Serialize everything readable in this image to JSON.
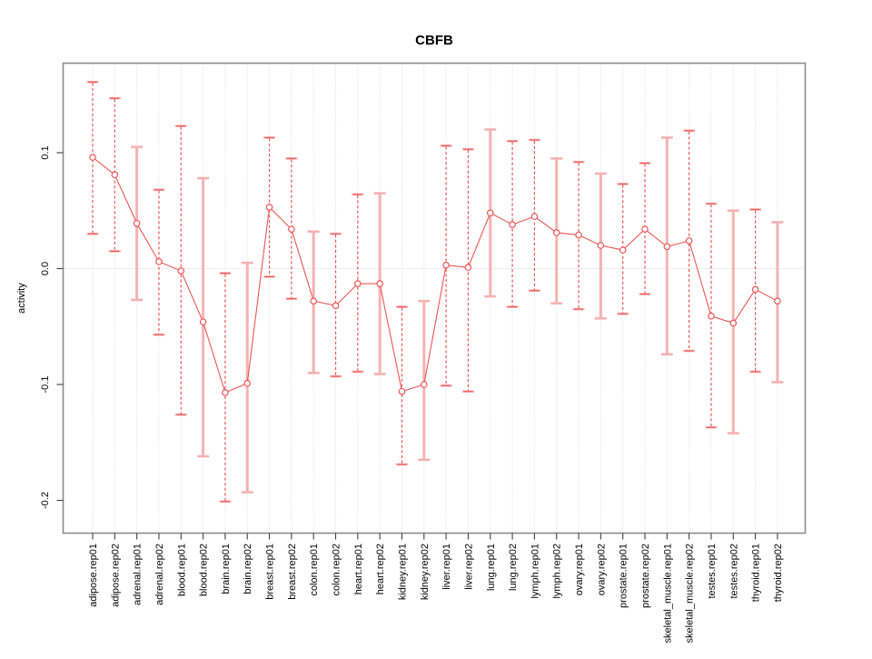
{
  "chart_data": {
    "type": "line",
    "title": "CBFB",
    "xlabel": "",
    "ylabel": "activity",
    "ylim": [
      -0.228,
      0.177
    ],
    "yticks": [
      0.1,
      0.0,
      -0.1,
      -0.2
    ],
    "ytick_labels": [
      "0.1",
      "0.0",
      "-0.1",
      "-0.2"
    ],
    "grid": "vertical dotted line per category, dotted horizontal line at y=0",
    "legend_position": "none",
    "marker": "open-circle",
    "colors": {
      "series": "#ee5555",
      "band": "#f7b2b2",
      "grid": "#d9d9d9",
      "box": "#8c8c8c"
    },
    "error_bars": true,
    "points": [
      {
        "label": "adipose.rep01",
        "value": 0.096,
        "lo": 0.03,
        "hi": 0.161,
        "bar_style": "dashed"
      },
      {
        "label": "adipose.rep02",
        "value": 0.081,
        "lo": 0.015,
        "hi": 0.147,
        "bar_style": "dashed"
      },
      {
        "label": "adrenal.rep01",
        "value": 0.039,
        "lo": -0.027,
        "hi": 0.105,
        "bar_style": "solid"
      },
      {
        "label": "adrenal.rep02",
        "value": 0.006,
        "lo": -0.057,
        "hi": 0.068,
        "bar_style": "dashed"
      },
      {
        "label": "blood.rep01",
        "value": -0.002,
        "lo": -0.126,
        "hi": 0.123,
        "bar_style": "dashed"
      },
      {
        "label": "blood.rep02",
        "value": -0.046,
        "lo": -0.162,
        "hi": 0.078,
        "bar_style": "solid"
      },
      {
        "label": "brain.rep01",
        "value": -0.107,
        "lo": -0.201,
        "hi": -0.004,
        "bar_style": "dashed"
      },
      {
        "label": "brain.rep02",
        "value": -0.099,
        "lo": -0.193,
        "hi": 0.005,
        "bar_style": "solid"
      },
      {
        "label": "breast.rep01",
        "value": 0.053,
        "lo": -0.007,
        "hi": 0.113,
        "bar_style": "dashed"
      },
      {
        "label": "breast.rep02",
        "value": 0.034,
        "lo": -0.026,
        "hi": 0.095,
        "bar_style": "dashed"
      },
      {
        "label": "colon.rep01",
        "value": -0.028,
        "lo": -0.09,
        "hi": 0.032,
        "bar_style": "solid"
      },
      {
        "label": "colon.rep02",
        "value": -0.032,
        "lo": -0.093,
        "hi": 0.03,
        "bar_style": "dashed"
      },
      {
        "label": "heart.rep01",
        "value": -0.013,
        "lo": -0.089,
        "hi": 0.064,
        "bar_style": "dashed"
      },
      {
        "label": "heart.rep02",
        "value": -0.013,
        "lo": -0.091,
        "hi": 0.065,
        "bar_style": "solid"
      },
      {
        "label": "kidney.rep01",
        "value": -0.106,
        "lo": -0.169,
        "hi": -0.033,
        "bar_style": "dashed"
      },
      {
        "label": "kidney.rep02",
        "value": -0.1,
        "lo": -0.165,
        "hi": -0.028,
        "bar_style": "solid"
      },
      {
        "label": "liver.rep01",
        "value": 0.003,
        "lo": -0.101,
        "hi": 0.106,
        "bar_style": "dashed"
      },
      {
        "label": "liver.rep02",
        "value": 0.001,
        "lo": -0.106,
        "hi": 0.103,
        "bar_style": "dashed"
      },
      {
        "label": "lung.rep01",
        "value": 0.048,
        "lo": -0.024,
        "hi": 0.12,
        "bar_style": "solid"
      },
      {
        "label": "lung.rep02",
        "value": 0.038,
        "lo": -0.033,
        "hi": 0.11,
        "bar_style": "dashed"
      },
      {
        "label": "lymph.rep01",
        "value": 0.045,
        "lo": -0.019,
        "hi": 0.111,
        "bar_style": "dashed"
      },
      {
        "label": "lymph.rep02",
        "value": 0.031,
        "lo": -0.03,
        "hi": 0.095,
        "bar_style": "solid"
      },
      {
        "label": "ovary.rep01",
        "value": 0.029,
        "lo": -0.035,
        "hi": 0.092,
        "bar_style": "dashed"
      },
      {
        "label": "ovary.rep02",
        "value": 0.02,
        "lo": -0.043,
        "hi": 0.082,
        "bar_style": "solid"
      },
      {
        "label": "prostate.rep01",
        "value": 0.016,
        "lo": -0.039,
        "hi": 0.073,
        "bar_style": "dashed"
      },
      {
        "label": "prostate.rep02",
        "value": 0.034,
        "lo": -0.022,
        "hi": 0.091,
        "bar_style": "dashed"
      },
      {
        "label": "skeletal_muscle.rep01",
        "value": 0.019,
        "lo": -0.074,
        "hi": 0.113,
        "bar_style": "solid"
      },
      {
        "label": "skeletal_muscle.rep02",
        "value": 0.024,
        "lo": -0.071,
        "hi": 0.119,
        "bar_style": "dashed"
      },
      {
        "label": "testes.rep01",
        "value": -0.041,
        "lo": -0.137,
        "hi": 0.056,
        "bar_style": "dashed"
      },
      {
        "label": "testes.rep02",
        "value": -0.047,
        "lo": -0.142,
        "hi": 0.05,
        "bar_style": "solid"
      },
      {
        "label": "thyroid.rep01",
        "value": -0.018,
        "lo": -0.089,
        "hi": 0.051,
        "bar_style": "dashed"
      },
      {
        "label": "thyroid.rep02",
        "value": -0.028,
        "lo": -0.098,
        "hi": 0.04,
        "bar_style": "solid"
      }
    ]
  }
}
